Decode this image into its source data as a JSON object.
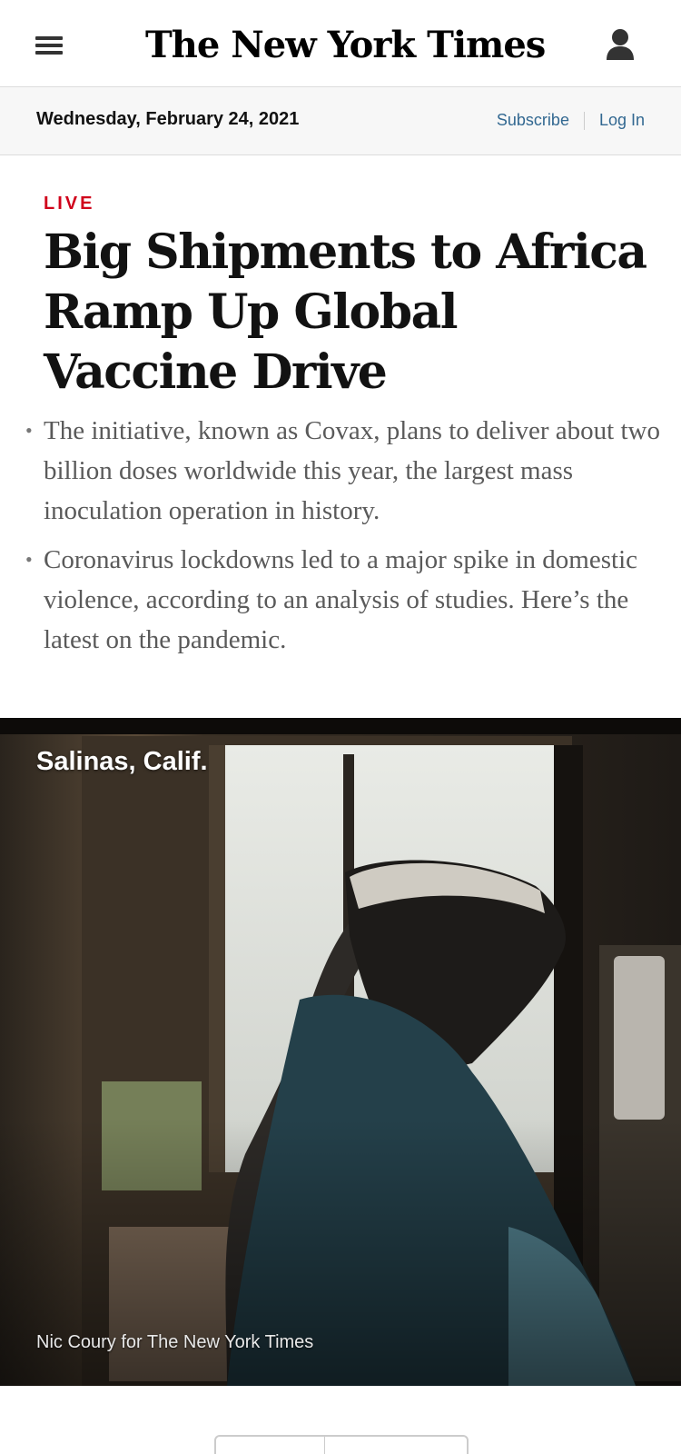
{
  "header": {
    "logo_text": "The New York Times"
  },
  "datebar": {
    "date": "Wednesday, February 24, 2021",
    "subscribe_label": "Subscribe",
    "login_label": "Log In"
  },
  "story": {
    "kicker": "LIVE",
    "headline": "Big Shipments to Africa Ramp Up Global Vaccine Drive",
    "summary": [
      "The initiative, known as Covax, plans to deliver about two billion doses worldwide this year, the largest mass inoculation operation in history.",
      "Coronavirus lockdowns led to a major spike in domestic violence, according to an analysis of studies. Here’s the latest on the pandemic."
    ],
    "bullet_glyph": "•"
  },
  "photo": {
    "location": "Salinas, Calif.",
    "credit": "Nic Coury for The New York Times"
  },
  "colors": {
    "live_red": "#d0021b",
    "link_blue": "#326891"
  }
}
